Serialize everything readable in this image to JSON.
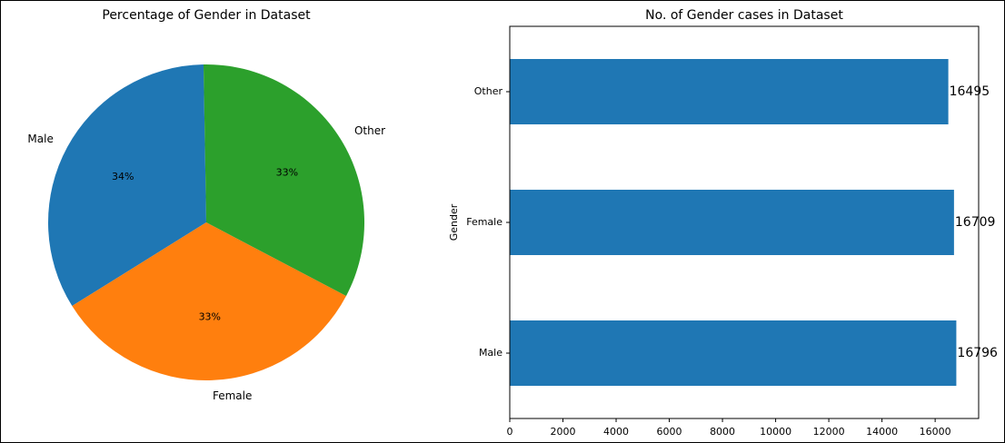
{
  "colors": {
    "male": "#1f77b4",
    "female": "#ff7f0e",
    "other": "#2ca02c",
    "bar": "#1f77b4",
    "axis": "#000000"
  },
  "chart_data": [
    {
      "type": "pie",
      "title": "Percentage of Gender in Dataset",
      "slices": [
        {
          "label": "Male",
          "percent_label": "34%",
          "value": 16796,
          "color": "#1f77b4"
        },
        {
          "label": "Female",
          "percent_label": "33%",
          "value": 16709,
          "color": "#ff7f0e"
        },
        {
          "label": "Other",
          "percent_label": "33%",
          "value": 16495,
          "color": "#2ca02c"
        }
      ],
      "start_angle_deg": 91
    },
    {
      "type": "bar",
      "orientation": "horizontal",
      "title": "No. of Gender cases in Dataset",
      "ylabel": "Gender",
      "xlabel": "",
      "categories": [
        "Male",
        "Female",
        "Other"
      ],
      "values": [
        16796,
        16709,
        16495
      ],
      "value_labels": [
        "16796",
        "16709",
        "16495"
      ],
      "xlim": [
        0,
        17636
      ],
      "xticks": [
        0,
        2000,
        4000,
        6000,
        8000,
        10000,
        12000,
        14000,
        16000
      ],
      "xtick_labels": [
        "0",
        "2000",
        "4000",
        "6000",
        "8000",
        "10000",
        "12000",
        "14000",
        "16000"
      ],
      "grid": false,
      "color": "#1f77b4"
    }
  ]
}
